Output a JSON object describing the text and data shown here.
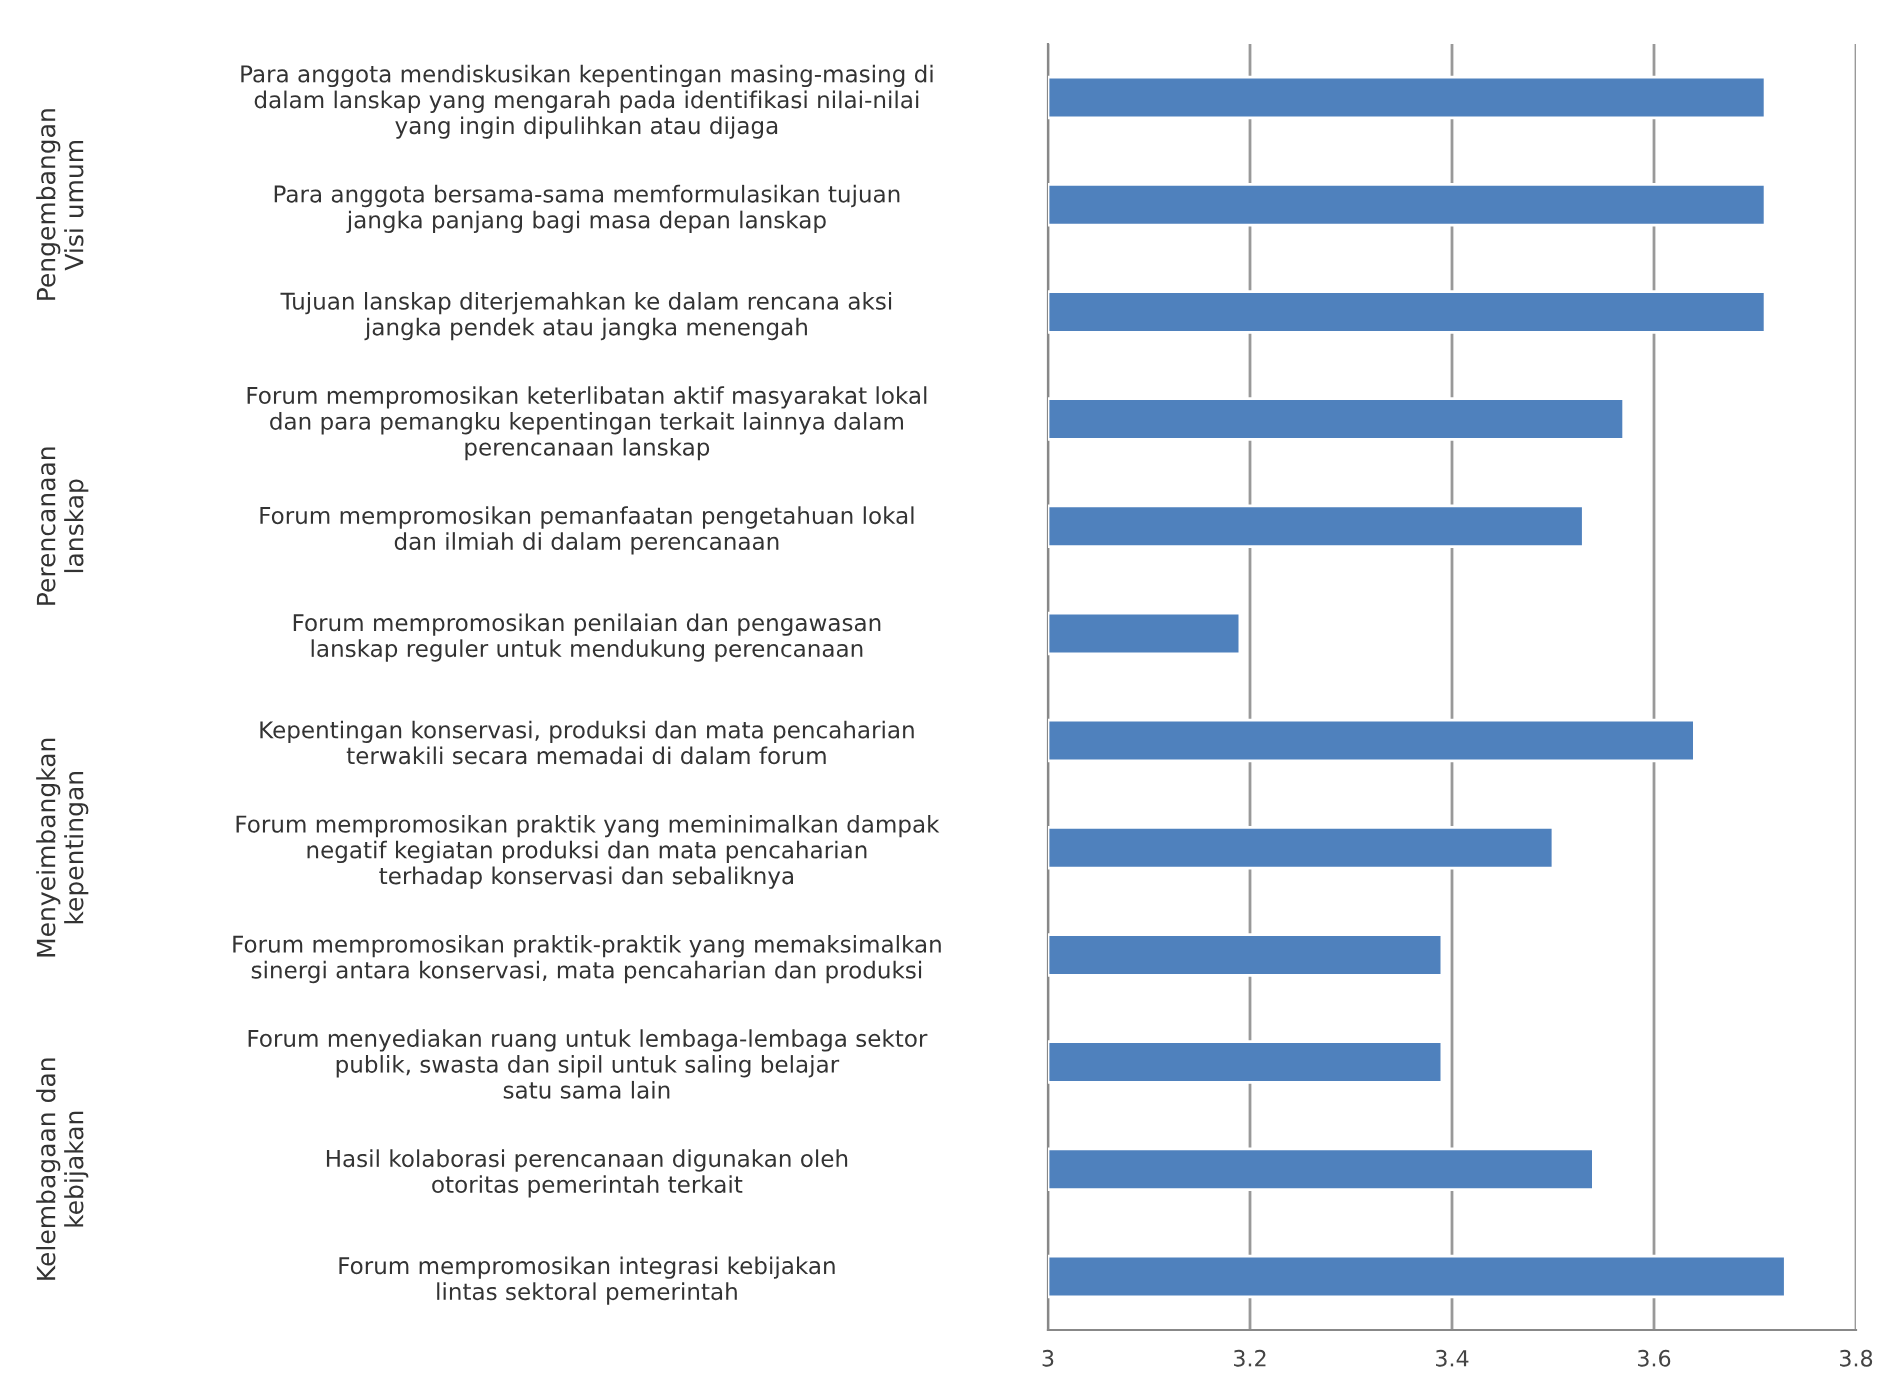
{
  "chart_data": {
    "type": "bar",
    "orientation": "horizontal",
    "categories": [
      "Para anggota mendiskusikan kepentingan masing-masing di\ndalam lanskap yang mengarah pada identifikasi nilai-nilai\nyang ingin dipulihkan atau dijaga",
      "Para anggota bersama-sama memformulasikan tujuan\njangka panjang bagi masa depan lanskap",
      "Tujuan lanskap diterjemahkan ke dalam rencana aksi\njangka pendek atau jangka menengah",
      "Forum mempromosikan keterlibatan aktif masyarakat lokal\ndan para pemangku kepentingan terkait lainnya dalam\nperencanaan lanskap",
      "Forum mempromosikan pemanfaatan pengetahuan lokal\ndan ilmiah di dalam perencanaan",
      "Forum mempromosikan penilaian dan pengawasan\nlanskap reguler untuk mendukung perencanaan",
      "Kepentingan konservasi, produksi dan mata pencaharian\nterwakili secara memadai di dalam forum",
      "Forum mempromosikan praktik yang meminimalkan dampak\nnegatif kegiatan produksi dan mata pencaharian\nterhadap konservasi dan sebaliknya",
      "Forum mempromosikan praktik-praktik yang memaksimalkan\nsinergi antara konservasi, mata pencaharian dan produksi",
      "Forum menyediakan ruang untuk lembaga-lembaga sektor\npublik, swasta dan sipil untuk saling belajar\nsatu sama lain",
      "Hasil kolaborasi perencanaan digunakan oleh\notoritas pemerintah terkait",
      "Forum mempromosikan integrasi kebijakan\nlintas sektoral pemerintah"
    ],
    "values": [
      3.71,
      3.71,
      3.71,
      3.57,
      3.53,
      3.19,
      3.64,
      3.5,
      3.39,
      3.39,
      3.54,
      3.73
    ],
    "color": "#4f81bd",
    "xlim": [
      3,
      3.8
    ],
    "xticks": [
      3,
      3.2,
      3.4,
      3.6,
      3.8
    ],
    "grid": "x",
    "annotations": [
      "Pengembangan\nVisi umum",
      "Perencanaan\nlanskap",
      "Menyeimbangkan\nkepentingan",
      "Kelembagaan dan\nkebijakan"
    ]
  }
}
